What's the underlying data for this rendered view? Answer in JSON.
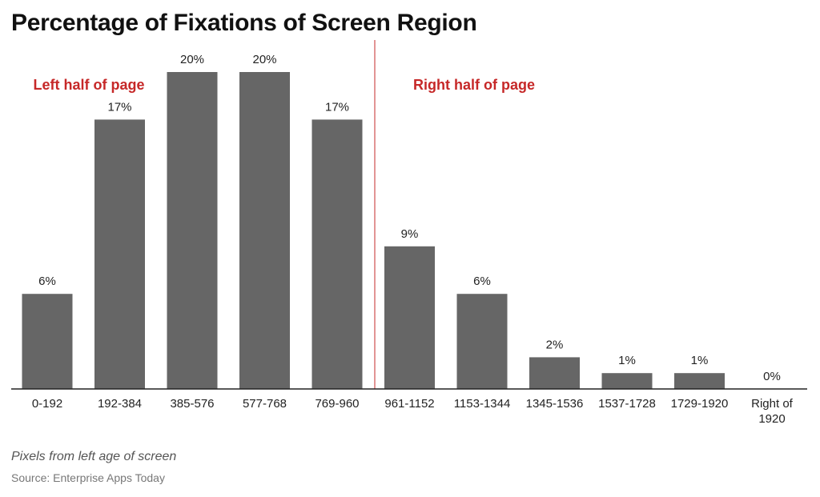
{
  "colors": {
    "bar": "#666666",
    "annotation": "#c62828",
    "axis": "#222222",
    "text": "#222222"
  },
  "chart_data": {
    "type": "bar",
    "title": "Percentage of Fixations of Screen Region",
    "xlabel": "Pixels from left age of screen",
    "ylabel": "",
    "ylim": [
      0,
      20
    ],
    "grid": false,
    "categories": [
      "0-192",
      "192-384",
      "385-576",
      "577-768",
      "769-960",
      "961-1152",
      "1153-1344",
      "1345-1536",
      "1537-1728",
      "1729-1920",
      "Right of 1920"
    ],
    "values": [
      6,
      17,
      20,
      20,
      17,
      9,
      6,
      2,
      1,
      1,
      0
    ],
    "data_labels": [
      "6%",
      "17%",
      "20%",
      "20%",
      "17%",
      "9%",
      "6%",
      "2%",
      "1%",
      "1%",
      "0%"
    ],
    "annotations": [
      "Left half of page",
      "Right half of page"
    ],
    "source": "Source: Enterprise Apps Today"
  }
}
